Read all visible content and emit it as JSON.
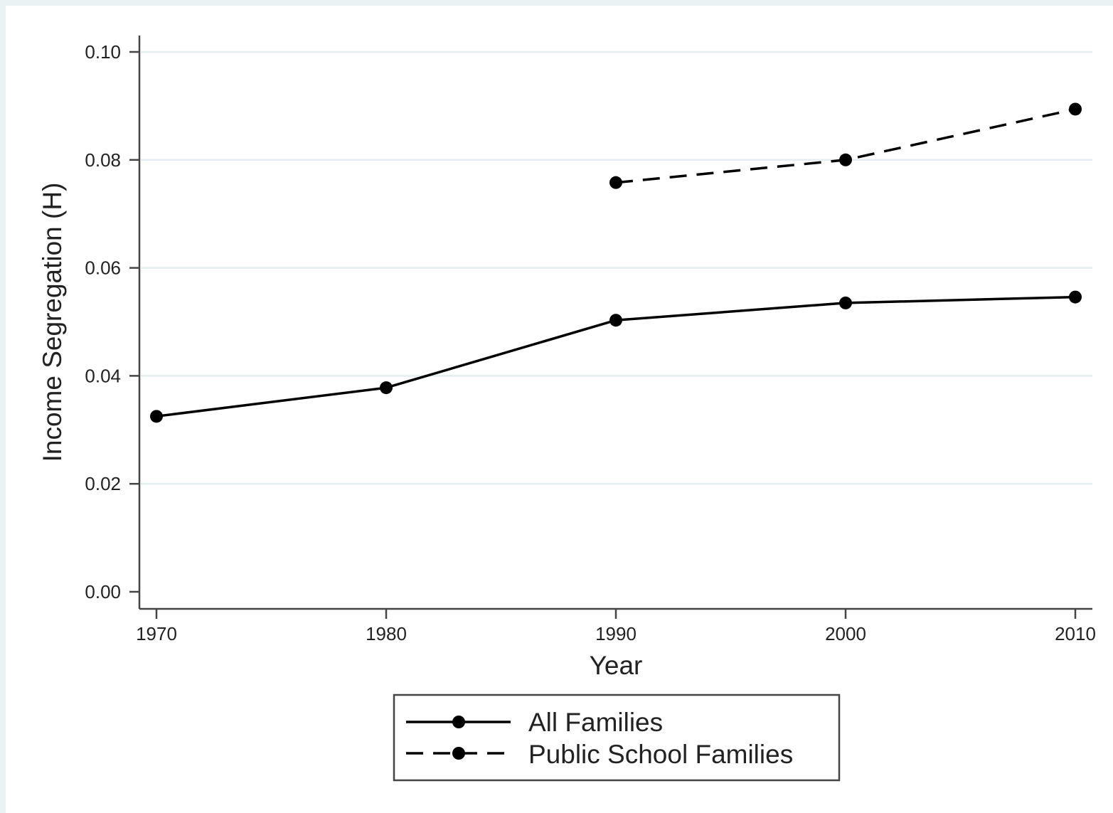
{
  "chart_data": {
    "type": "line",
    "title": "",
    "xlabel": "Year",
    "ylabel": "Income Segregation (H)",
    "x": [
      1970,
      1980,
      1990,
      2000,
      2010
    ],
    "xlim": [
      1970,
      2010
    ],
    "ylim": [
      0,
      0.1
    ],
    "x_ticks": [
      "1970",
      "1980",
      "1990",
      "2000",
      "2010"
    ],
    "y_ticks": [
      "0.00",
      "0.02",
      "0.04",
      "0.06",
      "0.08",
      "0.10"
    ],
    "grid": "horizontal",
    "legend_position": "bottom",
    "series": [
      {
        "name": "All Families",
        "style": "solid",
        "color": "#000000",
        "values": [
          0.0325,
          0.0378,
          0.0503,
          0.0535,
          0.0546
        ]
      },
      {
        "name": "Public School Families",
        "style": "dashed",
        "color": "#000000",
        "values": [
          null,
          null,
          0.0758,
          0.08,
          0.0894
        ]
      }
    ],
    "gridline_color": "#e4eef0"
  }
}
